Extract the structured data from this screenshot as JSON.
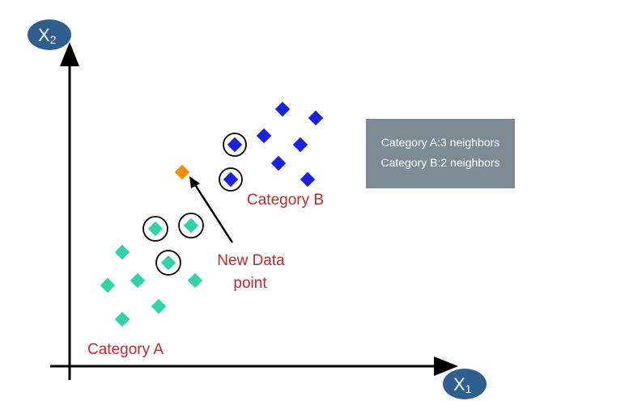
{
  "axes": {
    "y_label": "X",
    "y_subscript": "2",
    "x_label": "X",
    "x_subscript": "1"
  },
  "labels": {
    "category_a": "Category A",
    "category_b": "Category B",
    "new_point_line1": "New Data",
    "new_point_line2": "point"
  },
  "info_box": {
    "line1": "Category A:3 neighbors",
    "line2": "Category B:2 neighbors"
  },
  "colors": {
    "category_a": "#2ed3a6",
    "category_b": "#1a22e0",
    "new_point": "#f08c0c",
    "axis_badge": "#2f5f8f",
    "label_text": "#c0282d",
    "info_box": "#7d8b95"
  },
  "legend": {
    "neighbors_a": 3,
    "neighbors_b": 2
  }
}
